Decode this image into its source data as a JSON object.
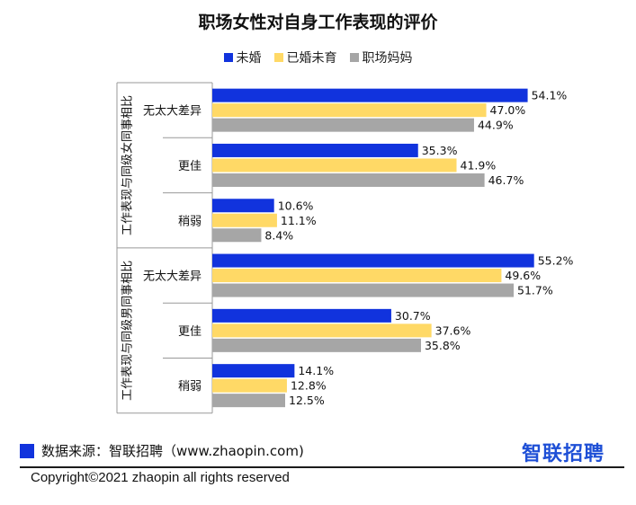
{
  "title": "职场女性对自身工作表现的评价",
  "legend": [
    {
      "label": "未婚",
      "color": "#1133dd"
    },
    {
      "label": "已婚未育",
      "color": "#ffd966"
    },
    {
      "label": "职场妈妈",
      "color": "#a6a6a6"
    }
  ],
  "source": "数据来源：智联招聘（www.zhaopin.com)",
  "brand": "智联招聘",
  "copyright": "Copyright©2021 zhaopin all rights reserved",
  "chart_data": {
    "type": "bar",
    "orientation": "horizontal",
    "groups": [
      {
        "label": "工作表现与同级女同事相比",
        "categories": [
          "无太大差异",
          "更佳",
          "稍弱"
        ],
        "series": [
          {
            "name": "未婚",
            "values": [
              54.1,
              35.3,
              10.6
            ]
          },
          {
            "name": "已婚未育",
            "values": [
              47.0,
              41.9,
              11.1
            ]
          },
          {
            "name": "职场妈妈",
            "values": [
              44.9,
              46.7,
              8.4
            ]
          }
        ]
      },
      {
        "label": "工作表现与同级男同事相比",
        "categories": [
          "无太大差异",
          "更佳",
          "稍弱"
        ],
        "series": [
          {
            "name": "未婚",
            "values": [
              55.2,
              30.7,
              14.1
            ]
          },
          {
            "name": "已婚未育",
            "values": [
              49.6,
              37.6,
              12.8
            ]
          },
          {
            "name": "职场妈妈",
            "values": [
              51.7,
              35.8,
              12.5
            ]
          }
        ]
      }
    ],
    "value_suffix": "%",
    "legend_position": "top"
  }
}
